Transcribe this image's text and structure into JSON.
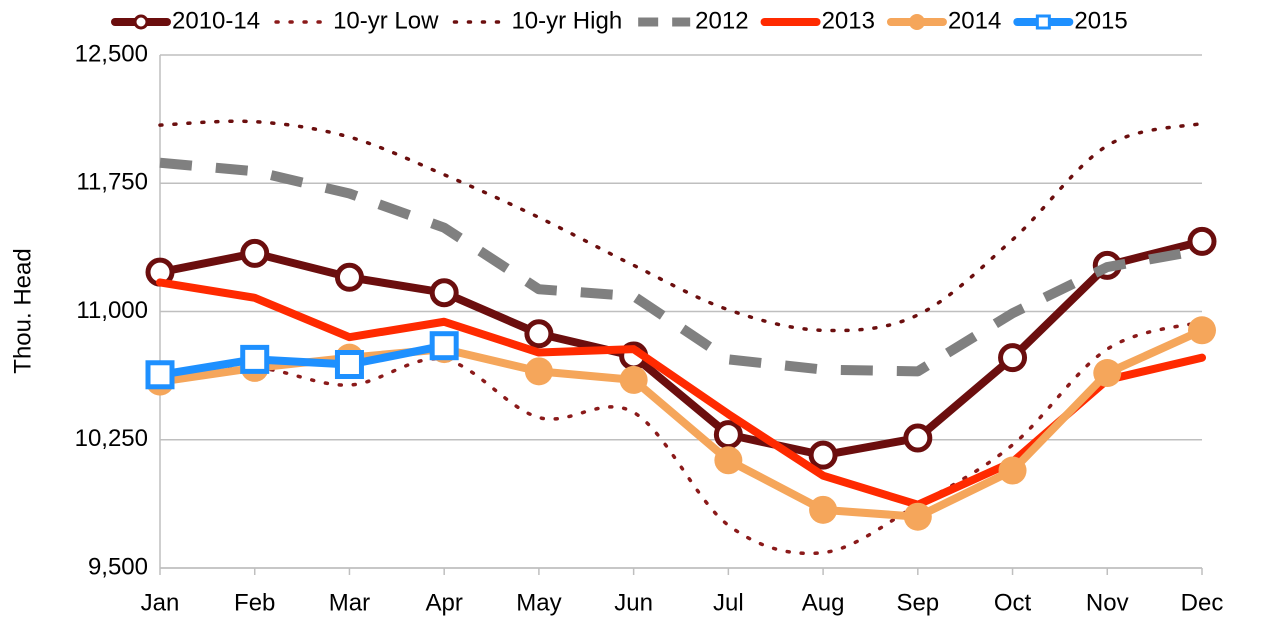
{
  "chart_data": {
    "type": "line",
    "y_axis_label": "Thou. Head",
    "categories": [
      "Jan",
      "Feb",
      "Mar",
      "Apr",
      "May",
      "Jun",
      "Jul",
      "Aug",
      "Sep",
      "Oct",
      "Nov",
      "Dec"
    ],
    "ylim": [
      9500,
      12500
    ],
    "yticks": [
      {
        "value": 9500,
        "label": "9,500"
      },
      {
        "value": 10250,
        "label": "10,250"
      },
      {
        "value": 11000,
        "label": "11,000"
      },
      {
        "value": 11750,
        "label": "11,750"
      },
      {
        "value": 12500,
        "label": "12,500"
      }
    ],
    "grid": true,
    "legend": "top",
    "series": [
      {
        "name": "2010-14",
        "color": "#6b0e0e",
        "line_style": "solid",
        "marker": "circle-open",
        "values": [
          11230,
          11340,
          11200,
          11110,
          10870,
          10740,
          10280,
          10160,
          10260,
          10730,
          11270,
          11410
        ]
      },
      {
        "name": "10-yr Low",
        "color": "#8b1a1a",
        "line_style": "dotted",
        "marker": "none",
        "values": [
          10600,
          10670,
          10570,
          10720,
          10380,
          10410,
          9750,
          9590,
          9870,
          10220,
          10780,
          10940
        ]
      },
      {
        "name": "10-yr High",
        "color": "#6b0e0e",
        "line_style": "dotted",
        "marker": "none",
        "values": [
          12090,
          12110,
          12020,
          11800,
          11550,
          11270,
          11010,
          10890,
          10980,
          11420,
          11970,
          12100
        ]
      },
      {
        "name": "2012",
        "color": "#808080",
        "line_style": "dashed",
        "marker": "none",
        "values": [
          11870,
          11820,
          11690,
          11490,
          11130,
          11090,
          10720,
          10660,
          10650,
          10990,
          11260,
          11360
        ]
      },
      {
        "name": "2013",
        "color": "#ff2a00",
        "line_style": "solid",
        "marker": "none",
        "values": [
          11170,
          11080,
          10850,
          10940,
          10760,
          10780,
          10400,
          10040,
          9870,
          10120,
          10600,
          10730
        ]
      },
      {
        "name": "2014",
        "color": "#f5a65b",
        "line_style": "solid",
        "marker": "circle",
        "values": [
          10590,
          10670,
          10730,
          10780,
          10650,
          10600,
          10130,
          9840,
          9800,
          10070,
          10640,
          10890
        ]
      },
      {
        "name": "2015",
        "color": "#1e90ff",
        "line_style": "solid",
        "marker": "square-open",
        "values": [
          10630,
          10720,
          10690,
          10800,
          null,
          null,
          null,
          null,
          null,
          null,
          null,
          null
        ]
      }
    ]
  }
}
